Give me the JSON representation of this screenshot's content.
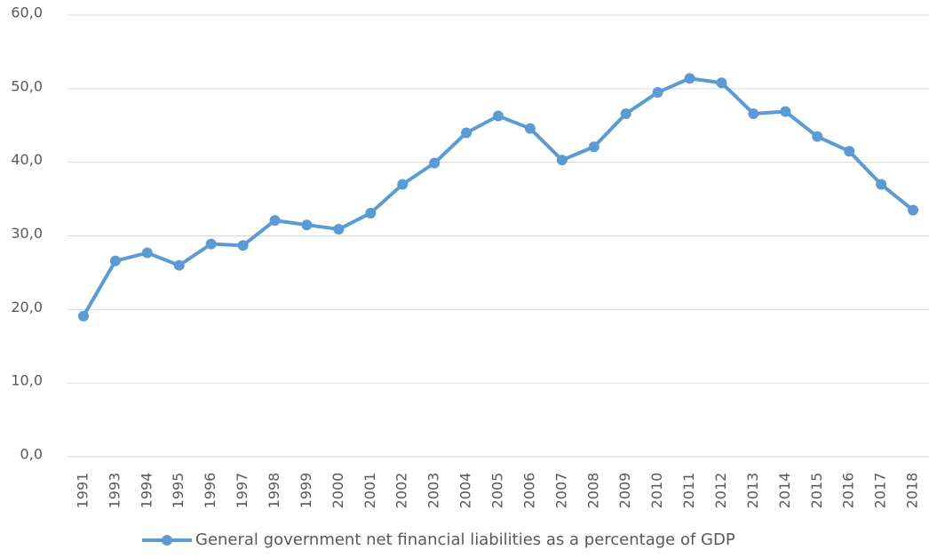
{
  "chart_data": {
    "type": "line",
    "categories": [
      "1991",
      "1993",
      "1994",
      "1995",
      "1996",
      "1997",
      "1998",
      "1999",
      "2000",
      "2001",
      "2002",
      "2003",
      "2004",
      "2005",
      "2006",
      "2007",
      "2008",
      "2009",
      "2010",
      "2011",
      "2012",
      "2013",
      "2014",
      "2015",
      "2016",
      "2017",
      "2018"
    ],
    "series": [
      {
        "name": "General government net financial liabilities as a percentage of GDP",
        "color": "#5b9bd5",
        "values": [
          19.1,
          26.6,
          27.7,
          26.0,
          28.9,
          28.7,
          32.1,
          31.5,
          30.9,
          33.1,
          37.0,
          39.9,
          44.0,
          46.3,
          44.6,
          40.3,
          42.1,
          46.6,
          49.5,
          51.4,
          50.8,
          46.6,
          46.9,
          43.5,
          41.5,
          37.0,
          33.5
        ]
      }
    ],
    "ylim": [
      0,
      60
    ],
    "yticks": [
      {
        "value": 0,
        "label": "0,0"
      },
      {
        "value": 10,
        "label": "10,0"
      },
      {
        "value": 20,
        "label": "20,0"
      },
      {
        "value": 30,
        "label": "30,0"
      },
      {
        "value": 40,
        "label": "40,0"
      },
      {
        "value": 50,
        "label": "50,0"
      },
      {
        "value": 60,
        "label": "60,0"
      }
    ],
    "grid": true,
    "legend": "bottom"
  }
}
